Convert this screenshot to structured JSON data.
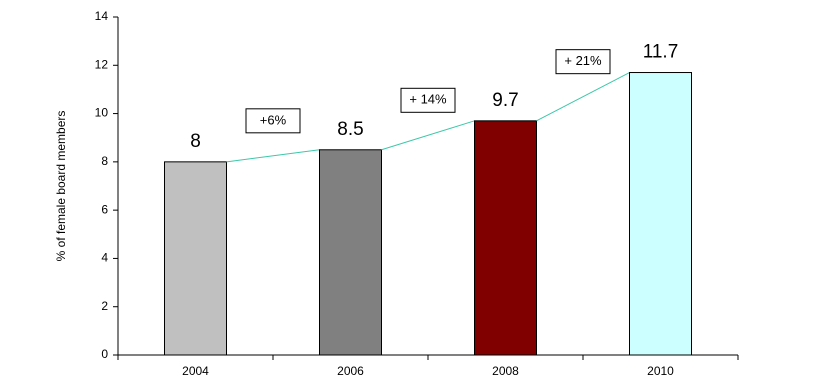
{
  "chart_data": {
    "type": "bar",
    "y_label": "% of female board members",
    "categories": [
      "2004",
      "2006",
      "2008",
      "2010"
    ],
    "values": [
      8,
      8.5,
      9.7,
      11.7
    ],
    "colors": [
      "#c0c0c0",
      "#808080",
      "#800000",
      "#ccffff"
    ],
    "line_color": "#3cc8a8",
    "annotations": [
      "+6%",
      "+ 14%",
      "+ 21%"
    ],
    "ylim": [
      0,
      14
    ],
    "yticks": [
      0,
      2,
      4,
      6,
      8,
      10,
      12,
      14
    ],
    "grid": false
  }
}
